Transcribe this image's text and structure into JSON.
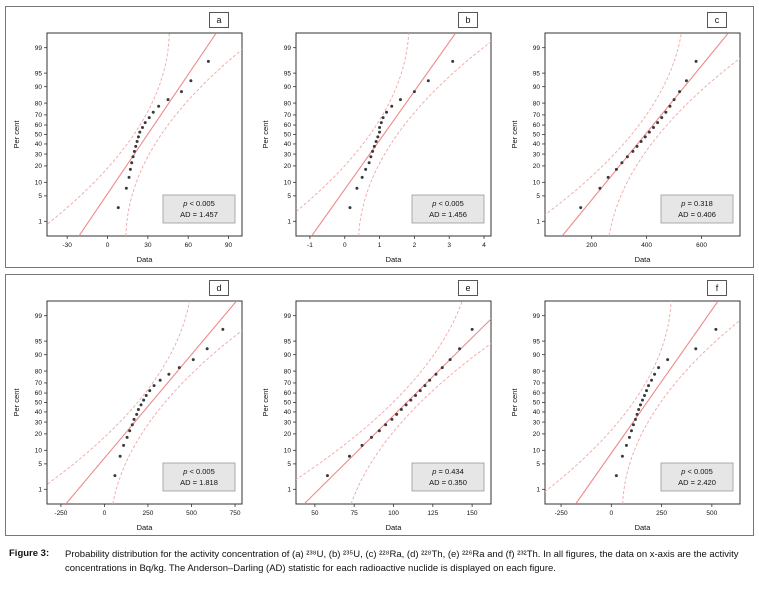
{
  "figure": {
    "caption_label": "Figure 3:",
    "caption_text": "Probability distribution for the activity concentration of (a) ²³⁸U, (b) ²³⁵U, (c) ²²⁸Ra, (d) ²²⁸Th, (e) ²²⁶Ra and (f) ²³²Th. In all figures, the data on x-axis are the activity concentrations in Bq/kg. The Anderson–Darling (AD) statistic for each radioactive nuclide is displayed on each figure."
  },
  "colors": {
    "fit_line": "#ef8a8a",
    "band": "#f2a5a5",
    "point": "#3a3a3a",
    "stat_box_bg": "#e6e6e6",
    "axis": "#333333"
  },
  "chart_data": [
    {
      "type": "scatter",
      "panel_label": "a",
      "nuclide": "238U",
      "xlabel": "Data",
      "ylabel": "Per cent",
      "xlim": [
        -45,
        100
      ],
      "x_ticks": [
        -30,
        0,
        30,
        60,
        90
      ],
      "y_ticks": [
        1,
        5,
        10,
        20,
        30,
        40,
        50,
        60,
        70,
        80,
        90,
        95,
        99
      ],
      "points": {
        "x": [
          8,
          14,
          16,
          17,
          18,
          19,
          20,
          21,
          22,
          23,
          24,
          26,
          28,
          31,
          34,
          38,
          45,
          55,
          62,
          75
        ],
        "pct": [
          2.5,
          7.5,
          12.5,
          17.5,
          22.5,
          27.5,
          32.5,
          37.5,
          42.5,
          47.5,
          52.5,
          57.5,
          62.5,
          67.5,
          72.5,
          77.5,
          82.5,
          87.5,
          92.5,
          97.5
        ]
      },
      "stats": {
        "p": "p < 0.005",
        "ad": "AD = 1.457"
      }
    },
    {
      "type": "scatter",
      "panel_label": "b",
      "nuclide": "235U",
      "xlabel": "Data",
      "ylabel": "Per cent",
      "xlim": [
        -1.4,
        4.2
      ],
      "x_ticks": [
        -1,
        0,
        1,
        2,
        3,
        4
      ],
      "y_ticks": [
        1,
        5,
        10,
        20,
        30,
        40,
        50,
        60,
        70,
        80,
        90,
        95,
        99
      ],
      "points": {
        "x": [
          0.15,
          0.35,
          0.5,
          0.6,
          0.7,
          0.75,
          0.8,
          0.85,
          0.9,
          0.95,
          1.0,
          1.0,
          1.05,
          1.1,
          1.2,
          1.35,
          1.6,
          2.0,
          2.4,
          3.1
        ],
        "pct": [
          2.5,
          7.5,
          12.5,
          17.5,
          22.5,
          27.5,
          32.5,
          37.5,
          42.5,
          47.5,
          52.5,
          57.5,
          62.5,
          67.5,
          72.5,
          77.5,
          82.5,
          87.5,
          92.5,
          97.5
        ]
      },
      "stats": {
        "p": "p < 0.005",
        "ad": "AD = 1.456"
      }
    },
    {
      "type": "scatter",
      "panel_label": "c",
      "nuclide": "228Ra",
      "xlabel": "Data",
      "ylabel": "Per cent",
      "xlim": [
        30,
        740
      ],
      "x_ticks": [
        200,
        400,
        600
      ],
      "y_ticks": [
        1,
        5,
        10,
        20,
        30,
        40,
        50,
        60,
        70,
        80,
        90,
        95,
        99
      ],
      "points": {
        "x": [
          160,
          230,
          260,
          290,
          310,
          330,
          350,
          365,
          380,
          395,
          410,
          425,
          440,
          455,
          470,
          485,
          500,
          520,
          545,
          580
        ],
        "pct": [
          2.5,
          7.5,
          12.5,
          17.5,
          22.5,
          27.5,
          32.5,
          37.5,
          42.5,
          47.5,
          52.5,
          57.5,
          62.5,
          67.5,
          72.5,
          77.5,
          82.5,
          87.5,
          92.5,
          97.5
        ]
      },
      "stats": {
        "p": "p = 0.318",
        "ad": "AD = 0.406"
      }
    },
    {
      "type": "scatter",
      "panel_label": "d",
      "nuclide": "228Th",
      "xlabel": "Data",
      "ylabel": "Per cent",
      "xlim": [
        -330,
        790
      ],
      "x_ticks": [
        -250,
        0,
        250,
        500,
        750
      ],
      "y_ticks": [
        1,
        5,
        10,
        20,
        30,
        40,
        50,
        60,
        70,
        80,
        90,
        95,
        99
      ],
      "points": {
        "x": [
          60,
          90,
          110,
          130,
          145,
          160,
          170,
          185,
          195,
          210,
          225,
          240,
          260,
          285,
          320,
          370,
          430,
          510,
          590,
          680
        ],
        "pct": [
          2.5,
          7.5,
          12.5,
          17.5,
          22.5,
          27.5,
          32.5,
          37.5,
          42.5,
          47.5,
          52.5,
          57.5,
          62.5,
          67.5,
          72.5,
          77.5,
          82.5,
          87.5,
          92.5,
          97.5
        ]
      },
      "stats": {
        "p": "p < 0.005",
        "ad": "AD = 1.818"
      }
    },
    {
      "type": "scatter",
      "panel_label": "e",
      "nuclide": "226Ra",
      "xlabel": "Data",
      "ylabel": "Per cent",
      "xlim": [
        38,
        162
      ],
      "x_ticks": [
        50,
        75,
        100,
        125,
        150
      ],
      "y_ticks": [
        1,
        5,
        10,
        20,
        30,
        40,
        50,
        60,
        70,
        80,
        90,
        95,
        99
      ],
      "points": {
        "x": [
          58,
          72,
          80,
          86,
          91,
          95,
          99,
          102,
          105,
          108,
          111,
          114,
          117,
          120,
          123,
          127,
          131,
          136,
          142,
          150
        ],
        "pct": [
          2.5,
          7.5,
          12.5,
          17.5,
          22.5,
          27.5,
          32.5,
          37.5,
          42.5,
          47.5,
          52.5,
          57.5,
          62.5,
          67.5,
          72.5,
          77.5,
          82.5,
          87.5,
          92.5,
          97.5
        ]
      },
      "stats": {
        "p": "p = 0.434",
        "ad": "AD = 0.350"
      }
    },
    {
      "type": "scatter",
      "panel_label": "f",
      "nuclide": "232Th",
      "xlabel": "Data",
      "ylabel": "Per cent",
      "xlim": [
        -330,
        640
      ],
      "x_ticks": [
        -250,
        0,
        250,
        500
      ],
      "y_ticks": [
        1,
        5,
        10,
        20,
        30,
        40,
        50,
        60,
        70,
        80,
        90,
        95,
        99
      ],
      "points": {
        "x": [
          25,
          55,
          75,
          90,
          100,
          110,
          120,
          128,
          136,
          145,
          155,
          165,
          175,
          185,
          200,
          215,
          235,
          280,
          420,
          520
        ],
        "pct": [
          2.5,
          7.5,
          12.5,
          17.5,
          22.5,
          27.5,
          32.5,
          37.5,
          42.5,
          47.5,
          52.5,
          57.5,
          62.5,
          67.5,
          72.5,
          77.5,
          82.5,
          87.5,
          92.5,
          97.5
        ]
      },
      "stats": {
        "p": "p < 0.005",
        "ad": "AD = 2.420"
      }
    }
  ]
}
